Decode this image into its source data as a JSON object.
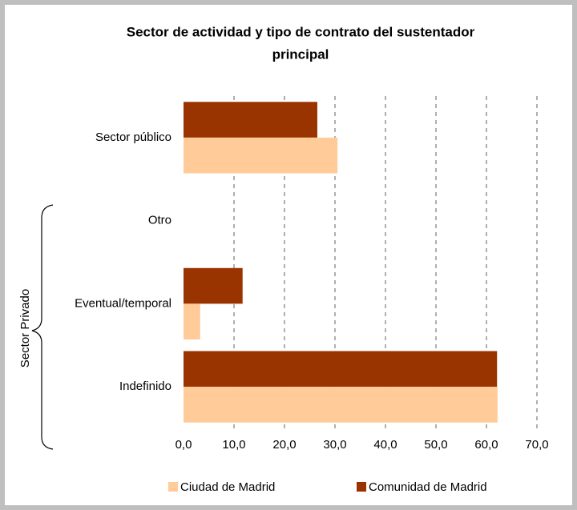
{
  "chart_data": {
    "type": "hbar",
    "title": "Sector de actividad y tipo de contrato del sustentador principal",
    "title_lines": [
      "Sector de actividad y tipo de contrato del sustentador",
      "principal"
    ],
    "categories": [
      "Sector público",
      "Otro",
      "Eventual/temporal",
      "Indefinido"
    ],
    "series": [
      {
        "name": "Comunidad de Madrid",
        "color": "#993300",
        "values": [
          26.5,
          0,
          11.7,
          62.1
        ]
      },
      {
        "name": "Ciudad de Madrid",
        "color": "#ffcc99",
        "values": [
          30.5,
          0,
          3.3,
          62.2
        ]
      }
    ],
    "legend_order": [
      1,
      0
    ],
    "group_label": "Sector Privado",
    "xlim": [
      0,
      70
    ],
    "xticks": [
      {
        "value": 0,
        "label": "0,0"
      },
      {
        "value": 10,
        "label": "10,0"
      },
      {
        "value": 20,
        "label": "20,0"
      },
      {
        "value": 30,
        "label": "30,0"
      },
      {
        "value": 40,
        "label": "40,0"
      },
      {
        "value": 50,
        "label": "50,0"
      },
      {
        "value": 60,
        "label": "60,0"
      },
      {
        "value": 70,
        "label": "70,0"
      }
    ],
    "grid": true
  }
}
